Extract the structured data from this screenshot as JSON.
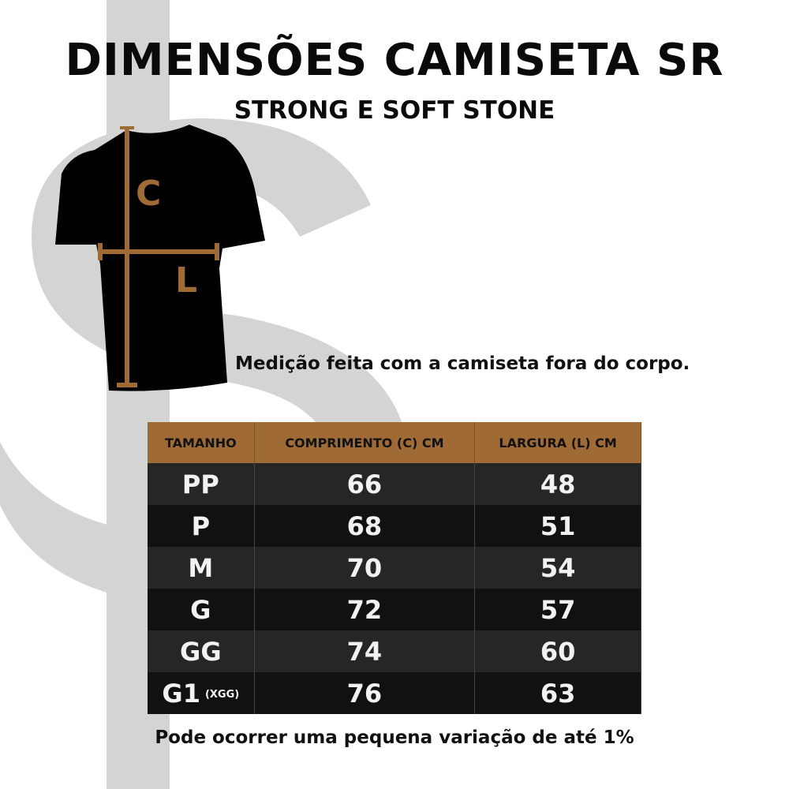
{
  "title": "DIMENSÕES CAMISETA SR",
  "subtitle": "STRONG E SOFT STONE",
  "diagram": {
    "length_letter": "C",
    "width_letter": "L",
    "accent_color": "#a06a35"
  },
  "note": "Medição feita com a camiseta fora do corpo.",
  "table": {
    "headers": [
      "TAMANHO",
      "COMPRIMENTO (C) CM",
      "LARGURA (L) CM"
    ],
    "header_color": "#a06a35",
    "rows": [
      {
        "size": "PP",
        "suffix": "",
        "length": "66",
        "width": "48"
      },
      {
        "size": "P",
        "suffix": "",
        "length": "68",
        "width": "51"
      },
      {
        "size": "M",
        "suffix": "",
        "length": "70",
        "width": "54"
      },
      {
        "size": "G",
        "suffix": "",
        "length": "72",
        "width": "57"
      },
      {
        "size": "GG",
        "suffix": "",
        "length": "74",
        "width": "60"
      },
      {
        "size": "G1",
        "suffix": "(XGG)",
        "length": "76",
        "width": "63"
      }
    ]
  },
  "footer": "Pode ocorrer uma pequena variação de até 1%"
}
